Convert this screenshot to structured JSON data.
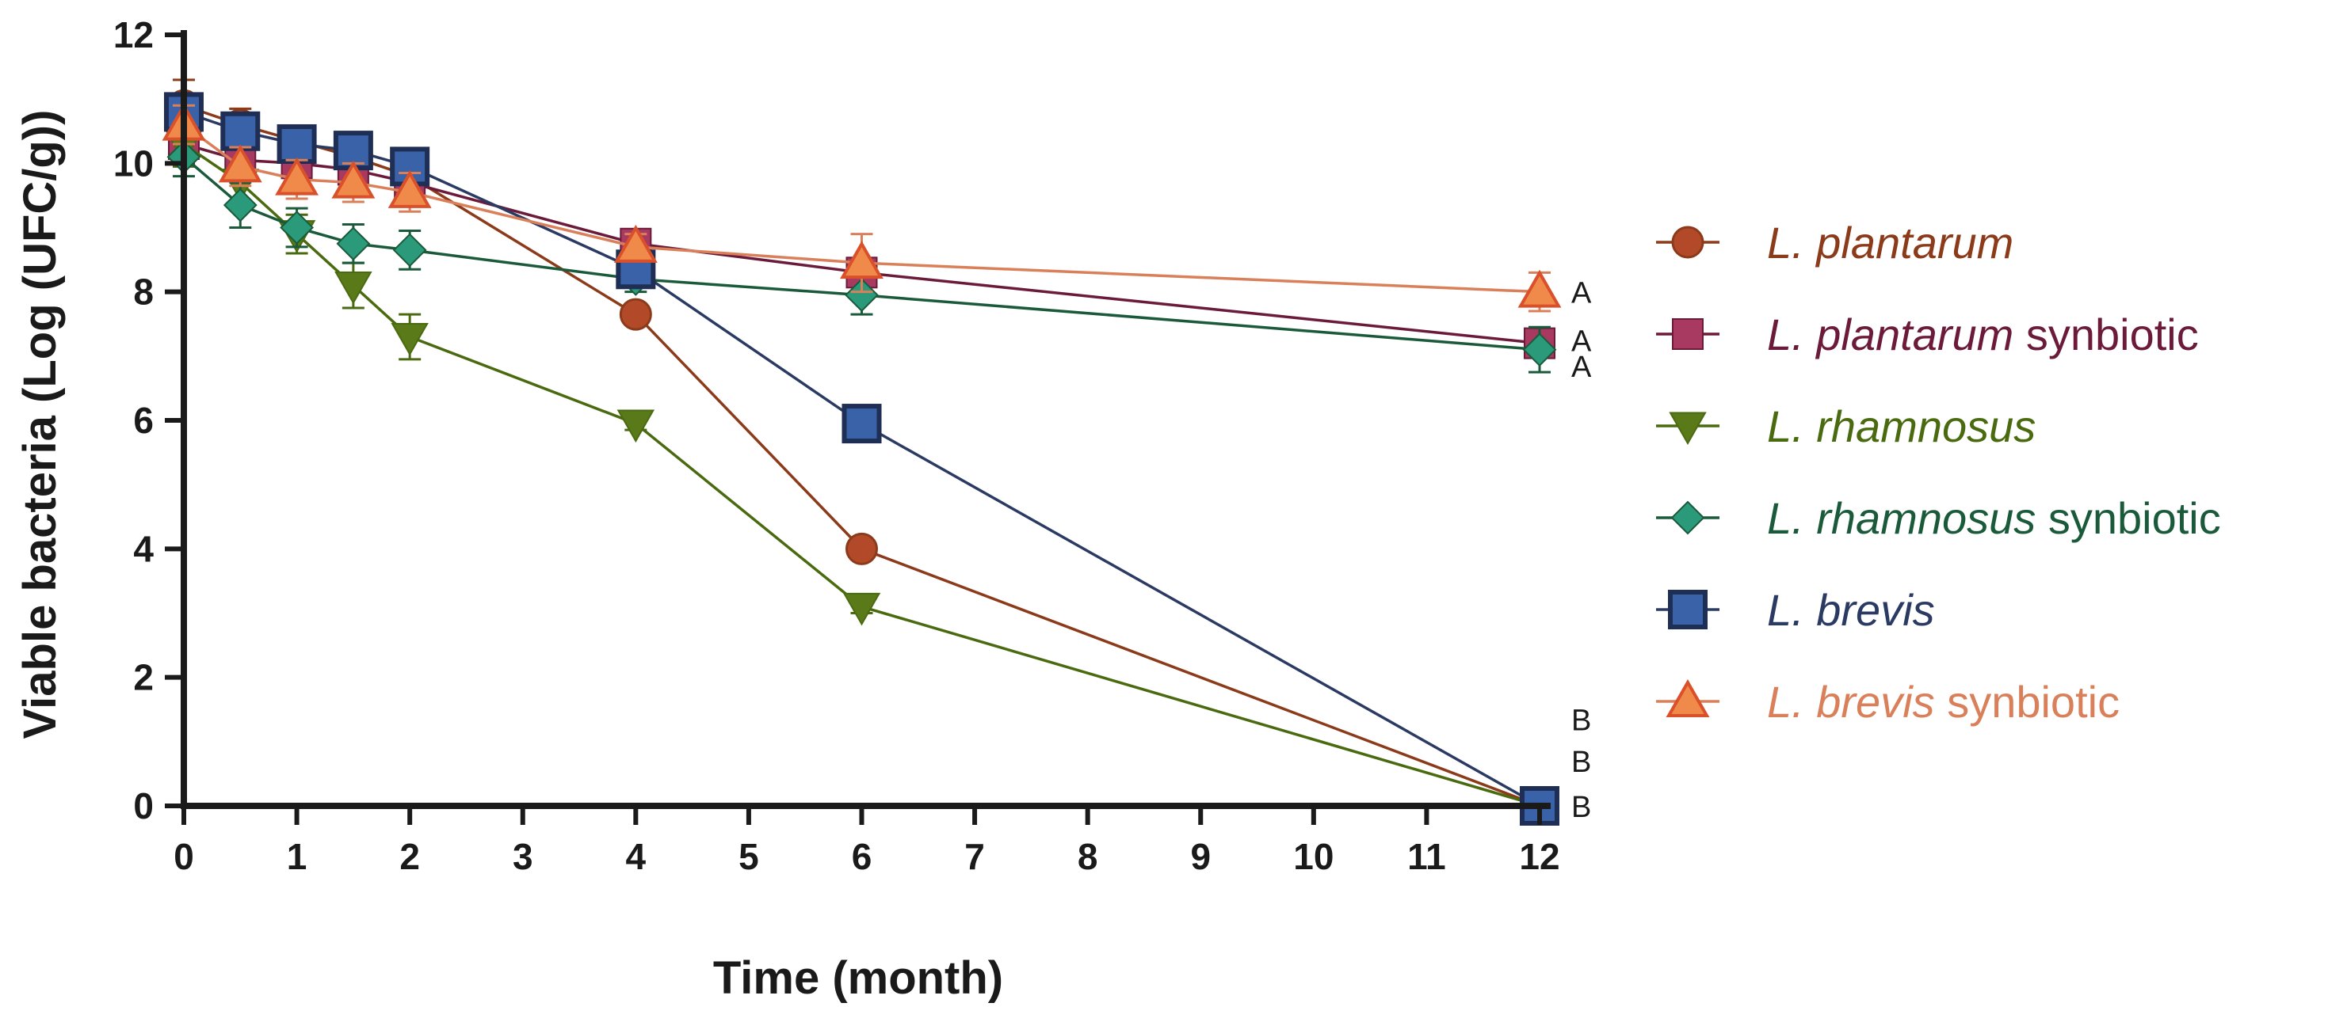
{
  "chart_data": {
    "type": "line",
    "title": "",
    "xlabel": "Time (month)",
    "ylabel": "Viable bacteria (Log (UFC/g))",
    "xlim": [
      0,
      12
    ],
    "ylim": [
      0,
      12
    ],
    "xticks": [
      "0",
      "1",
      "2",
      "3",
      "4",
      "5",
      "6",
      "7",
      "8",
      "9",
      "10",
      "11",
      "12"
    ],
    "yticks": [
      "0",
      "2",
      "4",
      "6",
      "8",
      "10",
      "12"
    ],
    "legend_position": "right",
    "series": [
      {
        "name": "L. plantarum",
        "name_italic": "L. plantarum",
        "name_suffix": "",
        "color": "#b24a2a",
        "line_color": "#8b3a1a",
        "marker": "circle",
        "x": [
          0,
          0.5,
          1,
          1.5,
          2,
          4,
          6,
          12
        ],
        "y": [
          10.9,
          10.6,
          10.35,
          10.1,
          9.8,
          7.65,
          4.0,
          0
        ],
        "err": [
          0.4,
          0.25,
          0.2,
          0.2,
          0.2,
          0.15,
          0.1,
          0
        ]
      },
      {
        "name": "L. plantarum synbiotic",
        "name_italic": "L. plantarum",
        "name_suffix": " synbiotic",
        "color": "#a83a62",
        "line_color": "#6b1a3a",
        "marker": "square",
        "x": [
          0,
          0.5,
          1,
          1.5,
          2,
          4,
          6,
          12
        ],
        "y": [
          10.3,
          10.05,
          10.0,
          9.9,
          9.7,
          8.75,
          8.3,
          7.2
        ],
        "err": [
          0.3,
          0.2,
          0.2,
          0.2,
          0.2,
          0.15,
          0.2,
          0.15
        ]
      },
      {
        "name": "L. rhamnosus",
        "name_italic": "L. rhamnosus",
        "name_suffix": "",
        "color": "#5a7a1a",
        "line_color": "#4a6a10",
        "marker": "triangle-down",
        "x": [
          0,
          0.5,
          1,
          1.5,
          2,
          4,
          6,
          12
        ],
        "y": [
          10.3,
          9.7,
          8.9,
          8.1,
          7.3,
          5.95,
          3.1,
          0
        ],
        "err": [
          0.35,
          0.3,
          0.3,
          0.35,
          0.35,
          0.1,
          0.1,
          0
        ]
      },
      {
        "name": "L. rhamnosus synbiotic",
        "name_italic": "L. rhamnosus",
        "name_suffix": " synbiotic",
        "color": "#2a9a7a",
        "line_color": "#1a5a3a",
        "marker": "diamond",
        "x": [
          0,
          0.5,
          1,
          1.5,
          2,
          4,
          6,
          12
        ],
        "y": [
          10.1,
          9.35,
          9.0,
          8.75,
          8.65,
          8.2,
          7.95,
          7.1
        ],
        "err": [
          0.3,
          0.35,
          0.3,
          0.3,
          0.3,
          0.2,
          0.3,
          0.35
        ]
      },
      {
        "name": "L. brevis",
        "name_italic": "L. brevis",
        "name_suffix": "",
        "color": "#3a62a8",
        "line_color": "#2a3a62",
        "marker": "square-outlined",
        "x": [
          0,
          0.5,
          1,
          1.5,
          2,
          4,
          6,
          12
        ],
        "y": [
          10.8,
          10.5,
          10.3,
          10.2,
          9.95,
          8.35,
          5.95,
          0
        ],
        "err": [
          0.2,
          0.2,
          0.2,
          0.2,
          0.15,
          0.15,
          0.1,
          0
        ]
      },
      {
        "name": "L. brevis synbiotic",
        "name_italic": "L. brevis",
        "name_suffix": " synbiotic",
        "color": "#f08a4a",
        "line_color": "#d9805a",
        "marker": "triangle-up",
        "x": [
          0,
          0.5,
          1,
          1.5,
          2,
          4,
          6,
          12
        ],
        "y": [
          10.6,
          9.95,
          9.75,
          9.7,
          9.55,
          8.7,
          8.45,
          8.0
        ],
        "err": [
          0.3,
          0.3,
          0.3,
          0.3,
          0.3,
          0.2,
          0.45,
          0.3
        ]
      }
    ],
    "annotations": [
      "A",
      "A",
      "A",
      "B",
      "B",
      "B"
    ]
  }
}
